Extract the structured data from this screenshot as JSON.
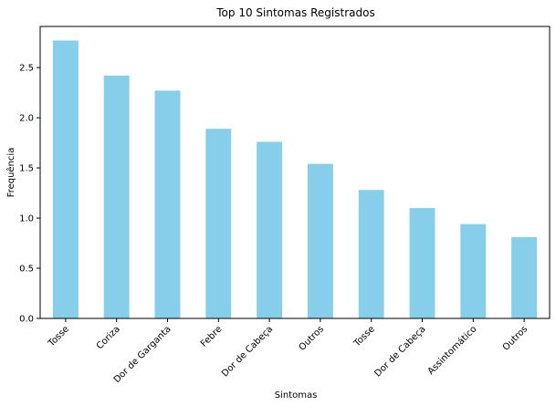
{
  "chart_data": {
    "type": "bar",
    "title": "Top 10 Sintomas Registrados",
    "xlabel": "Sintomas",
    "ylabel": "Frequência",
    "categories": [
      "Tosse",
      "Coriza",
      "Dor de Garganta",
      "Febre",
      "Dor de Cabeça",
      "Outros",
      "Tosse",
      "Dor de Cabeça",
      "Assintomático",
      "Outros"
    ],
    "values": [
      2.77,
      2.42,
      2.27,
      1.89,
      1.76,
      1.54,
      1.28,
      1.1,
      0.94,
      0.81
    ],
    "ylim": [
      0,
      2.91
    ],
    "yticks": [
      0.0,
      0.5,
      1.0,
      1.5,
      2.0,
      2.5
    ],
    "ytick_labels": [
      "0.0",
      "0.5",
      "1.0",
      "1.5",
      "2.0",
      "2.5"
    ],
    "xtick_rotation_deg": 45,
    "bar_color": "#87ceeb",
    "grid": false,
    "legend": "none"
  }
}
